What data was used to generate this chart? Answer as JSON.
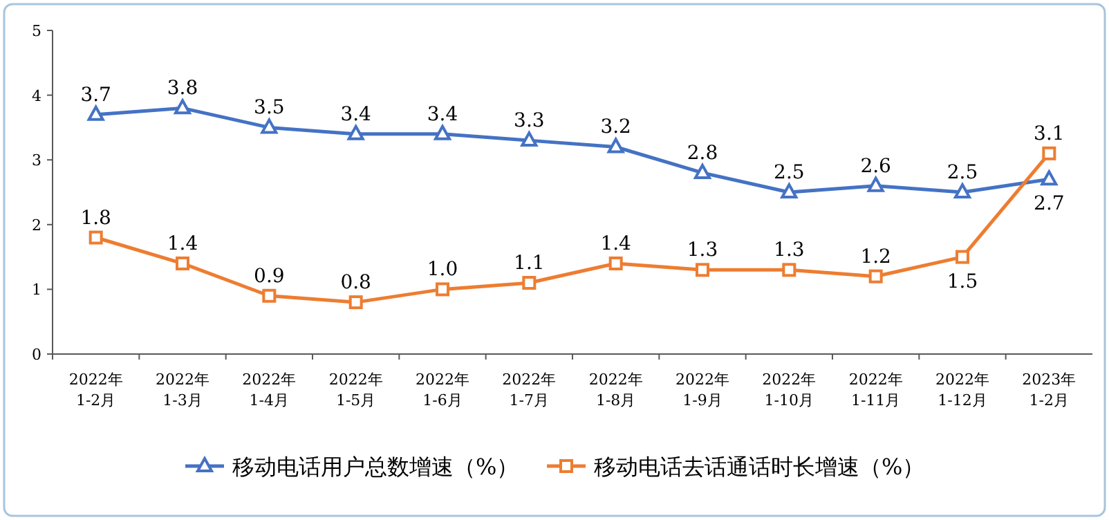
{
  "chart_data": {
    "type": "line",
    "categories": [
      "2022年\n1-2月",
      "2022年\n1-3月",
      "2022年\n1-4月",
      "2022年\n1-5月",
      "2022年\n1-6月",
      "2022年\n1-7月",
      "2022年\n1-8月",
      "2022年\n1-9月",
      "2022年\n1-10月",
      "2022年\n1-11月",
      "2022年\n1-12月",
      "2023年\n1-2月"
    ],
    "series": [
      {
        "name": "移动电话用户总数增速（%）",
        "color": "#4472c4",
        "marker": "triangle",
        "values": [
          3.7,
          3.8,
          3.5,
          3.4,
          3.4,
          3.3,
          3.2,
          2.8,
          2.5,
          2.6,
          2.5,
          2.7
        ],
        "value_labels": [
          "3.7",
          "3.8",
          "3.5",
          "3.4",
          "3.4",
          "3.3",
          "3.2",
          "2.8",
          "2.5",
          "2.6",
          "2.5",
          "2.7"
        ]
      },
      {
        "name": "移动电话去话通话时长增速（%）",
        "color": "#ed7d31",
        "marker": "square",
        "values": [
          1.8,
          1.4,
          0.9,
          0.8,
          1.0,
          1.1,
          1.4,
          1.3,
          1.3,
          1.2,
          1.5,
          3.1
        ],
        "value_labels": [
          "1.8",
          "1.4",
          "0.9",
          "0.8",
          "1.0",
          "1.1",
          "1.4",
          "1.3",
          "1.3",
          "1.2",
          "1.5",
          "3.1"
        ]
      }
    ],
    "ylim": [
      0,
      5
    ],
    "yticks": [
      0,
      1,
      2,
      3,
      4,
      5
    ],
    "legend": "bottom",
    "grid": false
  }
}
